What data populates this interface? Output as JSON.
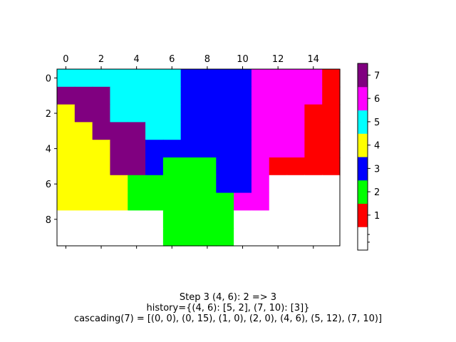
{
  "chart_data": {
    "type": "heatmap",
    "grid": [
      [
        5,
        5,
        5,
        5,
        5,
        5,
        5,
        3,
        3,
        3,
        3,
        6,
        6,
        6,
        6,
        1
      ],
      [
        7,
        7,
        7,
        5,
        5,
        5,
        5,
        3,
        3,
        3,
        3,
        6,
        6,
        6,
        6,
        1
      ],
      [
        4,
        7,
        7,
        5,
        5,
        5,
        5,
        3,
        3,
        3,
        3,
        6,
        6,
        6,
        1,
        1
      ],
      [
        4,
        4,
        7,
        7,
        7,
        5,
        5,
        3,
        3,
        3,
        3,
        6,
        6,
        6,
        1,
        1
      ],
      [
        4,
        4,
        4,
        7,
        7,
        3,
        3,
        3,
        3,
        3,
        3,
        6,
        6,
        6,
        1,
        1
      ],
      [
        4,
        4,
        4,
        7,
        7,
        3,
        2,
        2,
        2,
        3,
        3,
        6,
        1,
        1,
        1,
        1
      ],
      [
        4,
        4,
        4,
        4,
        2,
        2,
        2,
        2,
        2,
        3,
        3,
        6,
        0,
        0,
        0,
        0
      ],
      [
        4,
        4,
        4,
        4,
        2,
        2,
        2,
        2,
        2,
        2,
        6,
        6,
        0,
        0,
        0,
        0
      ],
      [
        0,
        0,
        0,
        0,
        0,
        0,
        2,
        2,
        2,
        2,
        0,
        0,
        0,
        0,
        0,
        0
      ],
      [
        0,
        0,
        0,
        0,
        0,
        0,
        2,
        2,
        2,
        2,
        0,
        0,
        0,
        0,
        0,
        0
      ]
    ],
    "colors": [
      "#ffffff",
      "#ff0000",
      "#00ff00",
      "#0000ff",
      "#ffff00",
      "#00ffff",
      "#ff00ff",
      "#800080"
    ],
    "x_ticks": [
      "0",
      "2",
      "4",
      "6",
      "8",
      "10",
      "12",
      "14"
    ],
    "x_tick_values": [
      0,
      2,
      4,
      6,
      8,
      10,
      12,
      14
    ],
    "y_ticks": [
      "0",
      "2",
      "4",
      "6",
      "8"
    ],
    "y_tick_values": [
      0,
      2,
      4,
      6,
      8
    ],
    "colorbar_ticks": [
      "1",
      "2",
      "3",
      "4",
      "5",
      "6",
      "7"
    ],
    "colorbar_tick_values": [
      1,
      2,
      3,
      4,
      5,
      6,
      7
    ],
    "colorbar_range": [
      0,
      7
    ],
    "caption": [
      "Step 3  (4, 6): 2 => 3",
      "history={(4, 6): [5, 2], (7, 10): [3]}",
      "cascading(7) = [(0, 0), (0, 15), (1, 0), (2, 0), (4, 6), (5, 12), (7, 10)]"
    ]
  }
}
